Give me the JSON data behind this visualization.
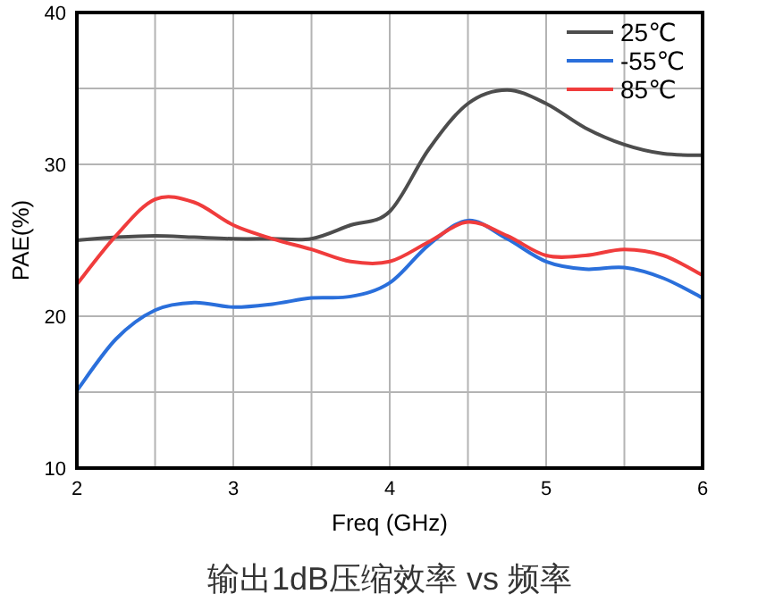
{
  "chart_data": {
    "type": "line",
    "xlabel": "Freq (GHz)",
    "ylabel": "PAE(%)",
    "annotations": [
      "输出1dB压缩效率 vs 频率"
    ],
    "xlim": [
      2,
      6
    ],
    "ylim": [
      10,
      40
    ],
    "xticks": [
      2,
      {
        "value": 2.5,
        "label": null
      },
      3,
      {
        "value": 3.5,
        "label": null
      },
      4,
      {
        "value": 4.5,
        "label": null
      },
      5,
      {
        "value": 5.5,
        "label": null
      },
      6
    ],
    "yticks": [
      10,
      {
        "value": 15,
        "label": null
      },
      20,
      {
        "value": 25,
        "label": null
      },
      30,
      {
        "value": 35,
        "label": null
      },
      40
    ],
    "grid": true,
    "legend": "top right",
    "marker": "none",
    "line_style": "solid",
    "x": [
      2,
      2.25,
      2.5,
      2.75,
      3,
      3.25,
      3.5,
      3.75,
      4,
      4.25,
      4.5,
      4.75,
      5,
      5.25,
      5.5,
      5.75,
      6
    ],
    "series": [
      {
        "name": "25℃",
        "color": "#4d4d4d",
        "values": [
          25.0,
          25.2,
          25.3,
          25.2,
          25.1,
          25.1,
          25.1,
          26.0,
          26.9,
          31.0,
          34.0,
          34.9,
          34.0,
          32.4,
          31.3,
          30.7,
          30.6
        ]
      },
      {
        "name": "-55℃",
        "color": "#2a6fdb",
        "values": [
          15.1,
          18.5,
          20.4,
          20.9,
          20.6,
          20.8,
          21.2,
          21.3,
          22.2,
          24.7,
          26.3,
          25.1,
          23.6,
          23.1,
          23.2,
          22.5,
          21.2
        ]
      },
      {
        "name": "85℃",
        "color": "#f03c3c",
        "values": [
          22.1,
          25.3,
          27.7,
          27.5,
          26.0,
          25.1,
          24.4,
          23.6,
          23.6,
          24.9,
          26.2,
          25.3,
          24.0,
          24.0,
          24.4,
          24.0,
          22.7
        ]
      }
    ]
  }
}
